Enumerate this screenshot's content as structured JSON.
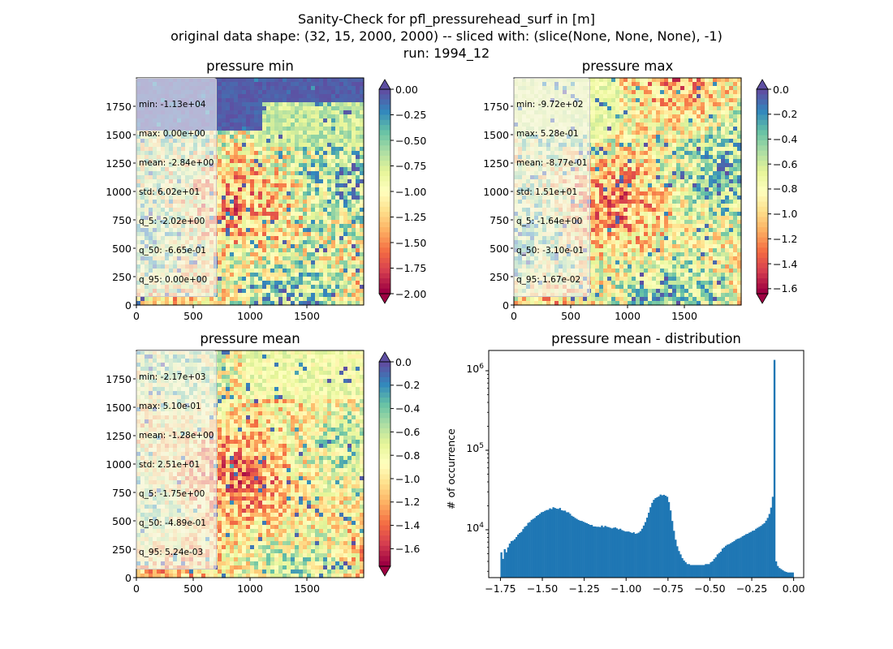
{
  "figure": {
    "title_lines": [
      "Sanity-Check for pfl_pressurehead_surf in [m]",
      "original data shape: (32, 15, 2000, 2000) -- sliced with: (slice(None, None, None), -1)",
      "run: 1994_12"
    ]
  },
  "chart_data": [
    {
      "type": "heatmap",
      "title": "pressure min",
      "colormap": "Spectral",
      "x_ticks": [
        "0",
        "500",
        "1000",
        "1500"
      ],
      "y_ticks": [
        "0",
        "250",
        "500",
        "750",
        "1000",
        "1250",
        "1500",
        "1750"
      ],
      "xlim": [
        0,
        2000
      ],
      "ylim": [
        0,
        2000
      ],
      "colorbar": {
        "min": -2.0,
        "max": 0.0,
        "extend": "both",
        "ticks": [
          "0.00",
          "−0.25",
          "−0.50",
          "−0.75",
          "−1.00",
          "−1.25",
          "−1.50",
          "−1.75",
          "−2.00"
        ]
      },
      "stats": [
        "min: -1.13e+04",
        "max: 0.00e+00",
        "mean: -2.84e+00",
        "std: 6.02e+01",
        "q_5: -2.02e+00",
        "q_50: -6.65e-01",
        "q_95: 0.00e+00"
      ]
    },
    {
      "type": "heatmap",
      "title": "pressure max",
      "colormap": "Spectral",
      "x_ticks": [
        "0",
        "500",
        "1000",
        "1500"
      ],
      "y_ticks": [
        "0",
        "250",
        "500",
        "750",
        "1000",
        "1250",
        "1500",
        "1750"
      ],
      "xlim": [
        0,
        2000
      ],
      "ylim": [
        0,
        2000
      ],
      "colorbar": {
        "min": -1.64,
        "max": 0.0,
        "extend": "both",
        "ticks": [
          "0.0",
          "−0.2",
          "−0.4",
          "−0.6",
          "−0.8",
          "−1.0",
          "−1.2",
          "−1.4",
          "−1.6"
        ]
      },
      "stats": [
        "min: -9.72e+02",
        "max: 5.28e-01",
        "mean: -8.77e-01",
        "std: 1.51e+01",
        "q_5: -1.64e+00",
        "q_50: -3.10e-01",
        "q_95: 1.67e-02"
      ]
    },
    {
      "type": "heatmap",
      "title": "pressure mean",
      "colormap": "Spectral",
      "x_ticks": [
        "0",
        "500",
        "1000",
        "1500"
      ],
      "y_ticks": [
        "0",
        "250",
        "500",
        "750",
        "1000",
        "1250",
        "1500",
        "1750"
      ],
      "xlim": [
        0,
        2000
      ],
      "ylim": [
        0,
        2000
      ],
      "colorbar": {
        "min": -1.75,
        "max": 0.0,
        "extend": "both",
        "ticks": [
          "0.0",
          "−0.2",
          "−0.4",
          "−0.6",
          "−0.8",
          "−1.0",
          "−1.2",
          "−1.4",
          "−1.6"
        ]
      },
      "stats": [
        "min: -2.17e+03",
        "max: 5.10e-01",
        "mean: -1.28e+00",
        "std: 2.51e+01",
        "q_5: -1.75e+00",
        "q_50: -4.89e-01",
        "q_95: 5.24e-03"
      ]
    },
    {
      "type": "bar",
      "title": "pressure mean - distribution",
      "ylabel": "# of occurrence",
      "yscale": "log",
      "ylim": [
        2500,
        1800000
      ],
      "xlim": [
        -1.82,
        0.06
      ],
      "bar_color": "#1f77b4",
      "x_ticks": [
        "−1.75",
        "−1.50",
        "−1.25",
        "−1.00",
        "−0.75",
        "−0.50",
        "−0.25",
        "0.00"
      ],
      "y_ticks": [
        "10^4",
        "10^5",
        "10^6"
      ],
      "bins": {
        "start": -1.75,
        "end": 0.0,
        "count": 175
      },
      "values": [
        5200,
        4300,
        5700,
        5200,
        6000,
        6700,
        7200,
        7300,
        7600,
        8100,
        8700,
        9100,
        9400,
        10200,
        10900,
        11200,
        12200,
        12500,
        13300,
        13700,
        14100,
        14900,
        15300,
        15900,
        16600,
        16800,
        17300,
        17700,
        17800,
        18600,
        18200,
        19200,
        18800,
        18400,
        18300,
        18800,
        17600,
        17400,
        17400,
        16600,
        16600,
        15900,
        15000,
        14600,
        14100,
        13700,
        13300,
        13000,
        12900,
        12600,
        12300,
        12100,
        11800,
        11500,
        11500,
        11000,
        11000,
        10900,
        10900,
        10800,
        11300,
        10800,
        11200,
        10900,
        10800,
        10600,
        10400,
        10600,
        10700,
        10400,
        10100,
        10300,
        9900,
        9700,
        9500,
        9500,
        9500,
        9300,
        9100,
        9300,
        8900,
        9000,
        9200,
        9600,
        10300,
        11300,
        12500,
        14200,
        16400,
        19200,
        21800,
        23800,
        25000,
        25600,
        26300,
        27700,
        27100,
        27500,
        26800,
        26000,
        22300,
        17500,
        12900,
        9700,
        7500,
        6200,
        5400,
        4900,
        4400,
        4100,
        3900,
        3700,
        3700,
        3600,
        3600,
        3600,
        3600,
        3600,
        3600,
        3600,
        3600,
        3600,
        3700,
        3700,
        3700,
        3900,
        4000,
        4300,
        4500,
        4900,
        5100,
        5300,
        5800,
        6000,
        6300,
        6500,
        6600,
        6800,
        7000,
        7200,
        7500,
        7700,
        7800,
        8000,
        8300,
        8500,
        8800,
        8900,
        9200,
        9400,
        9700,
        9800,
        10300,
        10600,
        10900,
        11200,
        11700,
        12100,
        13000,
        14100,
        15800,
        19000,
        26000,
        1370000,
        4000,
        3500,
        3300,
        3200,
        3100,
        3000,
        2950,
        2900,
        2900,
        2900,
        2900
      ]
    }
  ]
}
